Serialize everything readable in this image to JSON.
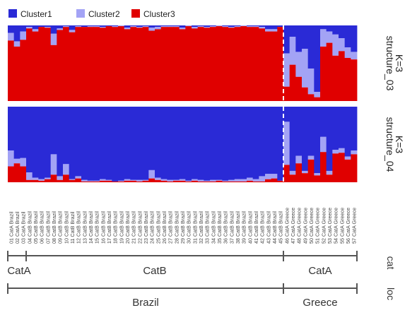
{
  "chart_data": {
    "type": "bar",
    "stacked": true,
    "legend": {
      "placement": "top-left",
      "entries": [
        {
          "name": "Cluster1",
          "color": "#2a2ad6"
        },
        {
          "name": "Cluster2",
          "color": "#a3a3f5"
        },
        {
          "name": "Cluster3",
          "color": "#e00000"
        }
      ]
    },
    "samples": [
      "01 CatA Brazil",
      "02 CatA Brazil",
      "03 CatA Brazil",
      "04 CatB Brazil",
      "05 CatB Brazil",
      "06 CatB Brazil",
      "07 CatB Brazil",
      "08 CatB Brazil",
      "09 CatB Brazil",
      "10 CatB Brazil",
      "11 CatB Brazil",
      "12 CatB Brazil",
      "13 CatB Brazil",
      "14 CatB Brazil",
      "15 CatB Brazil",
      "16 CatB Brazil",
      "17 CatB Brazil",
      "18 CatB Brazil",
      "19 CatB Brazil",
      "20 CatB Brazil",
      "21 CatB Brazil",
      "22 CatB Brazil",
      "23 CatB Brazil",
      "24 CatB Brazil",
      "25 CatB Brazil",
      "26 CatB Brazil",
      "27 CatB Brazil",
      "28 CatB Brazil",
      "29 CatB Brazil",
      "30 CatB Brazil",
      "31 CatB Brazil",
      "32 CatB Brazil",
      "33 CatB Brazil",
      "34 CatB Brazil",
      "35 CatB Brazil",
      "36 CatB Brazil",
      "37 CatB Brazil",
      "38 CatB Brazil",
      "39 CatB Brazil",
      "40 CatB Brazil",
      "41 CatB Brazil",
      "42 CatB Brazil",
      "43 CatB Brazil",
      "44 CatB Brazil",
      "45 CatB Brazil",
      "46 CatA Greece",
      "47 CatA Greece",
      "48 CatA Greece",
      "49 CatA Greece",
      "50 CatA Greece",
      "51 CatA Greece",
      "52 CatA Greece",
      "53 CatA Greece",
      "54 CatA Greece",
      "55 CatA Greece",
      "56 CatA Greece",
      "57 CatA Greece"
    ],
    "panels": [
      {
        "label": "structure_03\nK=3",
        "cluster1": [
          0.1,
          0.21,
          0.08,
          0.02,
          0.05,
          0.02,
          0.02,
          0.11,
          0.04,
          0.01,
          0.06,
          0.01,
          0.02,
          0.01,
          0.01,
          0.02,
          0.01,
          0.01,
          0.0,
          0.03,
          0.01,
          0.02,
          0.01,
          0.03,
          0.02,
          0.01,
          0.01,
          0.01,
          0.03,
          0.0,
          0.02,
          0.01,
          0.02,
          0.01,
          0.0,
          0.01,
          0.02,
          0.01,
          0.0,
          0.01,
          0.01,
          0.02,
          0.05,
          0.05,
          0.02,
          0.37,
          0.15,
          0.35,
          0.31,
          0.57,
          0.88,
          0.05,
          0.08,
          0.12,
          0.17,
          0.29,
          0.35
        ],
        "cluster2": [
          0.1,
          0.07,
          0.11,
          0.02,
          0.03,
          0.0,
          0.01,
          0.15,
          0.02,
          0.01,
          0.03,
          0.01,
          0.0,
          0.01,
          0.01,
          0.01,
          0.0,
          0.01,
          0.01,
          0.02,
          0.01,
          0.01,
          0.01,
          0.04,
          0.03,
          0.01,
          0.01,
          0.01,
          0.02,
          0.01,
          0.02,
          0.01,
          0.01,
          0.01,
          0.01,
          0.01,
          0.01,
          0.01,
          0.01,
          0.01,
          0.01,
          0.02,
          0.03,
          0.03,
          0.0,
          0.44,
          0.37,
          0.33,
          0.51,
          0.34,
          0.07,
          0.23,
          0.15,
          0.28,
          0.17,
          0.14,
          0.1
        ],
        "cluster3": [
          0.8,
          0.72,
          0.81,
          0.96,
          0.92,
          0.98,
          0.97,
          0.74,
          0.94,
          0.98,
          0.91,
          0.98,
          0.98,
          0.98,
          0.98,
          0.97,
          0.99,
          0.98,
          0.99,
          0.95,
          0.98,
          0.97,
          0.98,
          0.93,
          0.95,
          0.98,
          0.98,
          0.98,
          0.95,
          0.99,
          0.96,
          0.98,
          0.97,
          0.98,
          0.99,
          0.98,
          0.97,
          0.98,
          0.99,
          0.98,
          0.98,
          0.96,
          0.92,
          0.92,
          0.98,
          0.19,
          0.48,
          0.32,
          0.18,
          0.09,
          0.05,
          0.72,
          0.77,
          0.6,
          0.66,
          0.57,
          0.55
        ]
      },
      {
        "label": "structure_04\nK=3",
        "cluster1": [
          0.58,
          0.69,
          0.68,
          0.87,
          0.94,
          0.96,
          0.94,
          0.63,
          0.92,
          0.76,
          0.96,
          0.92,
          0.97,
          0.98,
          0.98,
          0.96,
          0.97,
          0.99,
          0.98,
          0.96,
          0.97,
          0.97,
          0.97,
          0.84,
          0.94,
          0.96,
          0.97,
          0.97,
          0.96,
          0.98,
          0.96,
          0.97,
          0.98,
          0.97,
          0.97,
          0.98,
          0.97,
          0.96,
          0.96,
          0.94,
          0.96,
          0.92,
          0.89,
          0.89,
          0.98,
          0.2,
          0.85,
          0.65,
          0.85,
          0.65,
          0.88,
          0.4,
          0.85,
          0.57,
          0.55,
          0.66,
          0.58
        ],
        "cluster2": [
          0.21,
          0.06,
          0.11,
          0.1,
          0.03,
          0.02,
          0.02,
          0.27,
          0.05,
          0.14,
          0.01,
          0.03,
          0.02,
          0.01,
          0.01,
          0.02,
          0.01,
          0.0,
          0.01,
          0.02,
          0.01,
          0.02,
          0.01,
          0.11,
          0.03,
          0.02,
          0.02,
          0.01,
          0.02,
          0.01,
          0.02,
          0.02,
          0.01,
          0.02,
          0.01,
          0.01,
          0.02,
          0.03,
          0.03,
          0.04,
          0.03,
          0.07,
          0.07,
          0.06,
          0.0,
          0.57,
          0.05,
          0.1,
          0.03,
          0.05,
          0.03,
          0.2,
          0.05,
          0.05,
          0.06,
          0.04,
          0.05
        ],
        "cluster3": [
          0.21,
          0.25,
          0.21,
          0.03,
          0.03,
          0.02,
          0.04,
          0.1,
          0.03,
          0.1,
          0.03,
          0.05,
          0.01,
          0.01,
          0.01,
          0.02,
          0.02,
          0.01,
          0.01,
          0.02,
          0.02,
          0.01,
          0.02,
          0.05,
          0.03,
          0.02,
          0.01,
          0.02,
          0.02,
          0.01,
          0.02,
          0.01,
          0.01,
          0.01,
          0.02,
          0.01,
          0.01,
          0.01,
          0.01,
          0.02,
          0.01,
          0.01,
          0.04,
          0.05,
          0.02,
          0.23,
          0.1,
          0.25,
          0.12,
          0.3,
          0.09,
          0.4,
          0.1,
          0.38,
          0.39,
          0.3,
          0.37
        ]
      }
    ],
    "group_separator_after_sample": 45,
    "annotation_rows": [
      {
        "label": "cat",
        "groups": [
          {
            "name": "CatA",
            "from": 1,
            "to": 3
          },
          {
            "name": "CatB",
            "from": 4,
            "to": 45
          },
          {
            "name": "CatA",
            "from": 46,
            "to": 57
          }
        ]
      },
      {
        "label": "loc",
        "groups": [
          {
            "name": "Brazil",
            "from": 1,
            "to": 45
          },
          {
            "name": "Greece",
            "from": 46,
            "to": 57
          }
        ]
      }
    ]
  }
}
